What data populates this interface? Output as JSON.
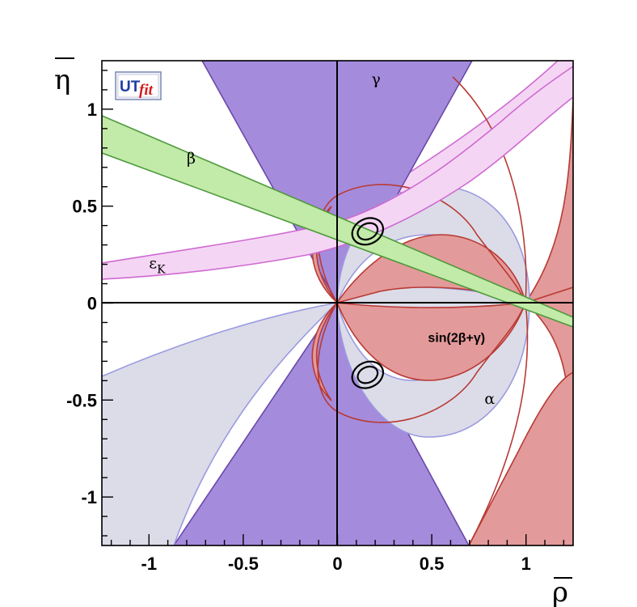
{
  "chart_data": {
    "type": "scatter",
    "title": "",
    "xlabel": "ρ",
    "ylabel": "η",
    "xlim": [
      -1.25,
      1.25
    ],
    "ylim": [
      -1.25,
      1.25
    ],
    "xticks": [
      {
        "value": -1,
        "label": "-1"
      },
      {
        "value": -0.5,
        "label": "-0.5"
      },
      {
        "value": 0,
        "label": "0"
      },
      {
        "value": 0.5,
        "label": "0.5"
      },
      {
        "value": 1,
        "label": "1"
      }
    ],
    "yticks": [
      {
        "value": -1,
        "label": "-1"
      },
      {
        "value": -0.5,
        "label": "-0.5"
      },
      {
        "value": 0,
        "label": "0"
      },
      {
        "value": 0.5,
        "label": "0.5"
      },
      {
        "value": 1,
        "label": "1"
      }
    ],
    "logo": {
      "part1": "UT",
      "part2": "fit"
    },
    "constraints": [
      {
        "name": "gamma",
        "label": "γ",
        "label_pos": [
          0.18,
          1.13
        ],
        "angle_deg_range": [
          58,
          73
        ],
        "fill": "#a58bdc",
        "stroke": "#6a4aa8"
      },
      {
        "name": "beta",
        "label": "β",
        "label_pos": [
          -0.8,
          0.72
        ],
        "eta_at_rho_minus_1_25": [
          0.96,
          0.77
        ],
        "fill": "#c2eaa8",
        "stroke": "#4e9a3c"
      },
      {
        "name": "epsilon_K",
        "label": "εK",
        "label_pos": [
          -1.0,
          0.18
        ],
        "fill": "#f4d6f4",
        "stroke": "#cf6ad2"
      },
      {
        "name": "alpha",
        "label": "α",
        "label_pos": [
          0.78,
          -0.52
        ],
        "fill": "#dcdce8",
        "stroke": "#9a9ae2"
      },
      {
        "name": "sin_2beta_plus_gamma",
        "label": "sin(2β+γ)",
        "label_pos": [
          0.48,
          -0.2
        ],
        "fill": "#e39a9a",
        "stroke": "#b83a34"
      }
    ],
    "contours": [
      {
        "name": "best_fit_upper",
        "center": [
          0.16,
          0.37
        ],
        "levels": [
          [
            0.055,
            0.04
          ],
          [
            0.085,
            0.065
          ]
        ]
      },
      {
        "name": "best_fit_lower",
        "center": [
          0.16,
          -0.37
        ],
        "levels": [
          [
            0.055,
            0.04
          ],
          [
            0.085,
            0.065
          ]
        ]
      }
    ]
  }
}
